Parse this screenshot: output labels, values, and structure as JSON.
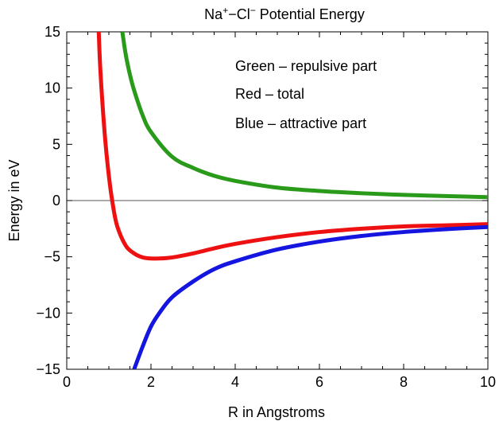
{
  "chart_data": {
    "type": "line",
    "title_parts": [
      "Na",
      "+",
      "−Cl",
      "−",
      " Potential Energy"
    ],
    "xlabel": "R in Angstroms",
    "ylabel": "Energy in eV",
    "xlim": [
      0,
      10
    ],
    "ylim": [
      -15,
      15
    ],
    "x_ticks": [
      0,
      2,
      4,
      6,
      8,
      10
    ],
    "x_tick_labels": [
      "0",
      "2",
      "4",
      "6",
      "8",
      "10"
    ],
    "y_ticks": [
      -15,
      -10,
      -5,
      0,
      5,
      10,
      15
    ],
    "y_tick_labels": [
      "−15",
      "−10",
      "−5",
      "0",
      "5",
      "10",
      "15"
    ],
    "grid": false,
    "zero_line": true,
    "annotations": [
      "Green – repulsive part",
      "Red – total",
      "Blue – attractive part"
    ],
    "series": [
      {
        "color": "#2a9a1a",
        "x": [
          1.32,
          1.4,
          1.5,
          1.6,
          1.8,
          2.0,
          2.5,
          3.0,
          3.5,
          4.0,
          5.0,
          6.0,
          7.0,
          8.0,
          9.0,
          10.0
        ],
        "y": [
          15.0,
          13.0,
          11.2,
          9.8,
          7.6,
          6.1,
          3.9,
          2.9,
          2.2,
          1.75,
          1.15,
          0.85,
          0.65,
          0.5,
          0.4,
          0.3
        ]
      },
      {
        "color": "#ee1111",
        "x": [
          0.76,
          0.8,
          0.9,
          1.0,
          1.1,
          1.2,
          1.4,
          1.6,
          1.8,
          2.0,
          2.2,
          2.4,
          2.6,
          3.0,
          3.5,
          4.0,
          5.0,
          6.0,
          7.0,
          8.0,
          9.0,
          10.0
        ],
        "y": [
          15.0,
          11.5,
          6.0,
          2.2,
          -0.5,
          -2.3,
          -4.0,
          -4.7,
          -5.05,
          -5.15,
          -5.15,
          -5.1,
          -5.0,
          -4.7,
          -4.25,
          -3.85,
          -3.25,
          -2.8,
          -2.5,
          -2.3,
          -2.2,
          -2.1
        ]
      },
      {
        "color": "#1515e0",
        "x": [
          1.6,
          1.8,
          2.0,
          2.2,
          2.5,
          3.0,
          3.5,
          4.0,
          5.0,
          6.0,
          7.0,
          8.0,
          9.0,
          10.0
        ],
        "y": [
          -15.0,
          -13.0,
          -11.2,
          -10.0,
          -8.6,
          -7.2,
          -6.1,
          -5.4,
          -4.35,
          -3.65,
          -3.15,
          -2.8,
          -2.55,
          -2.35
        ]
      }
    ]
  }
}
